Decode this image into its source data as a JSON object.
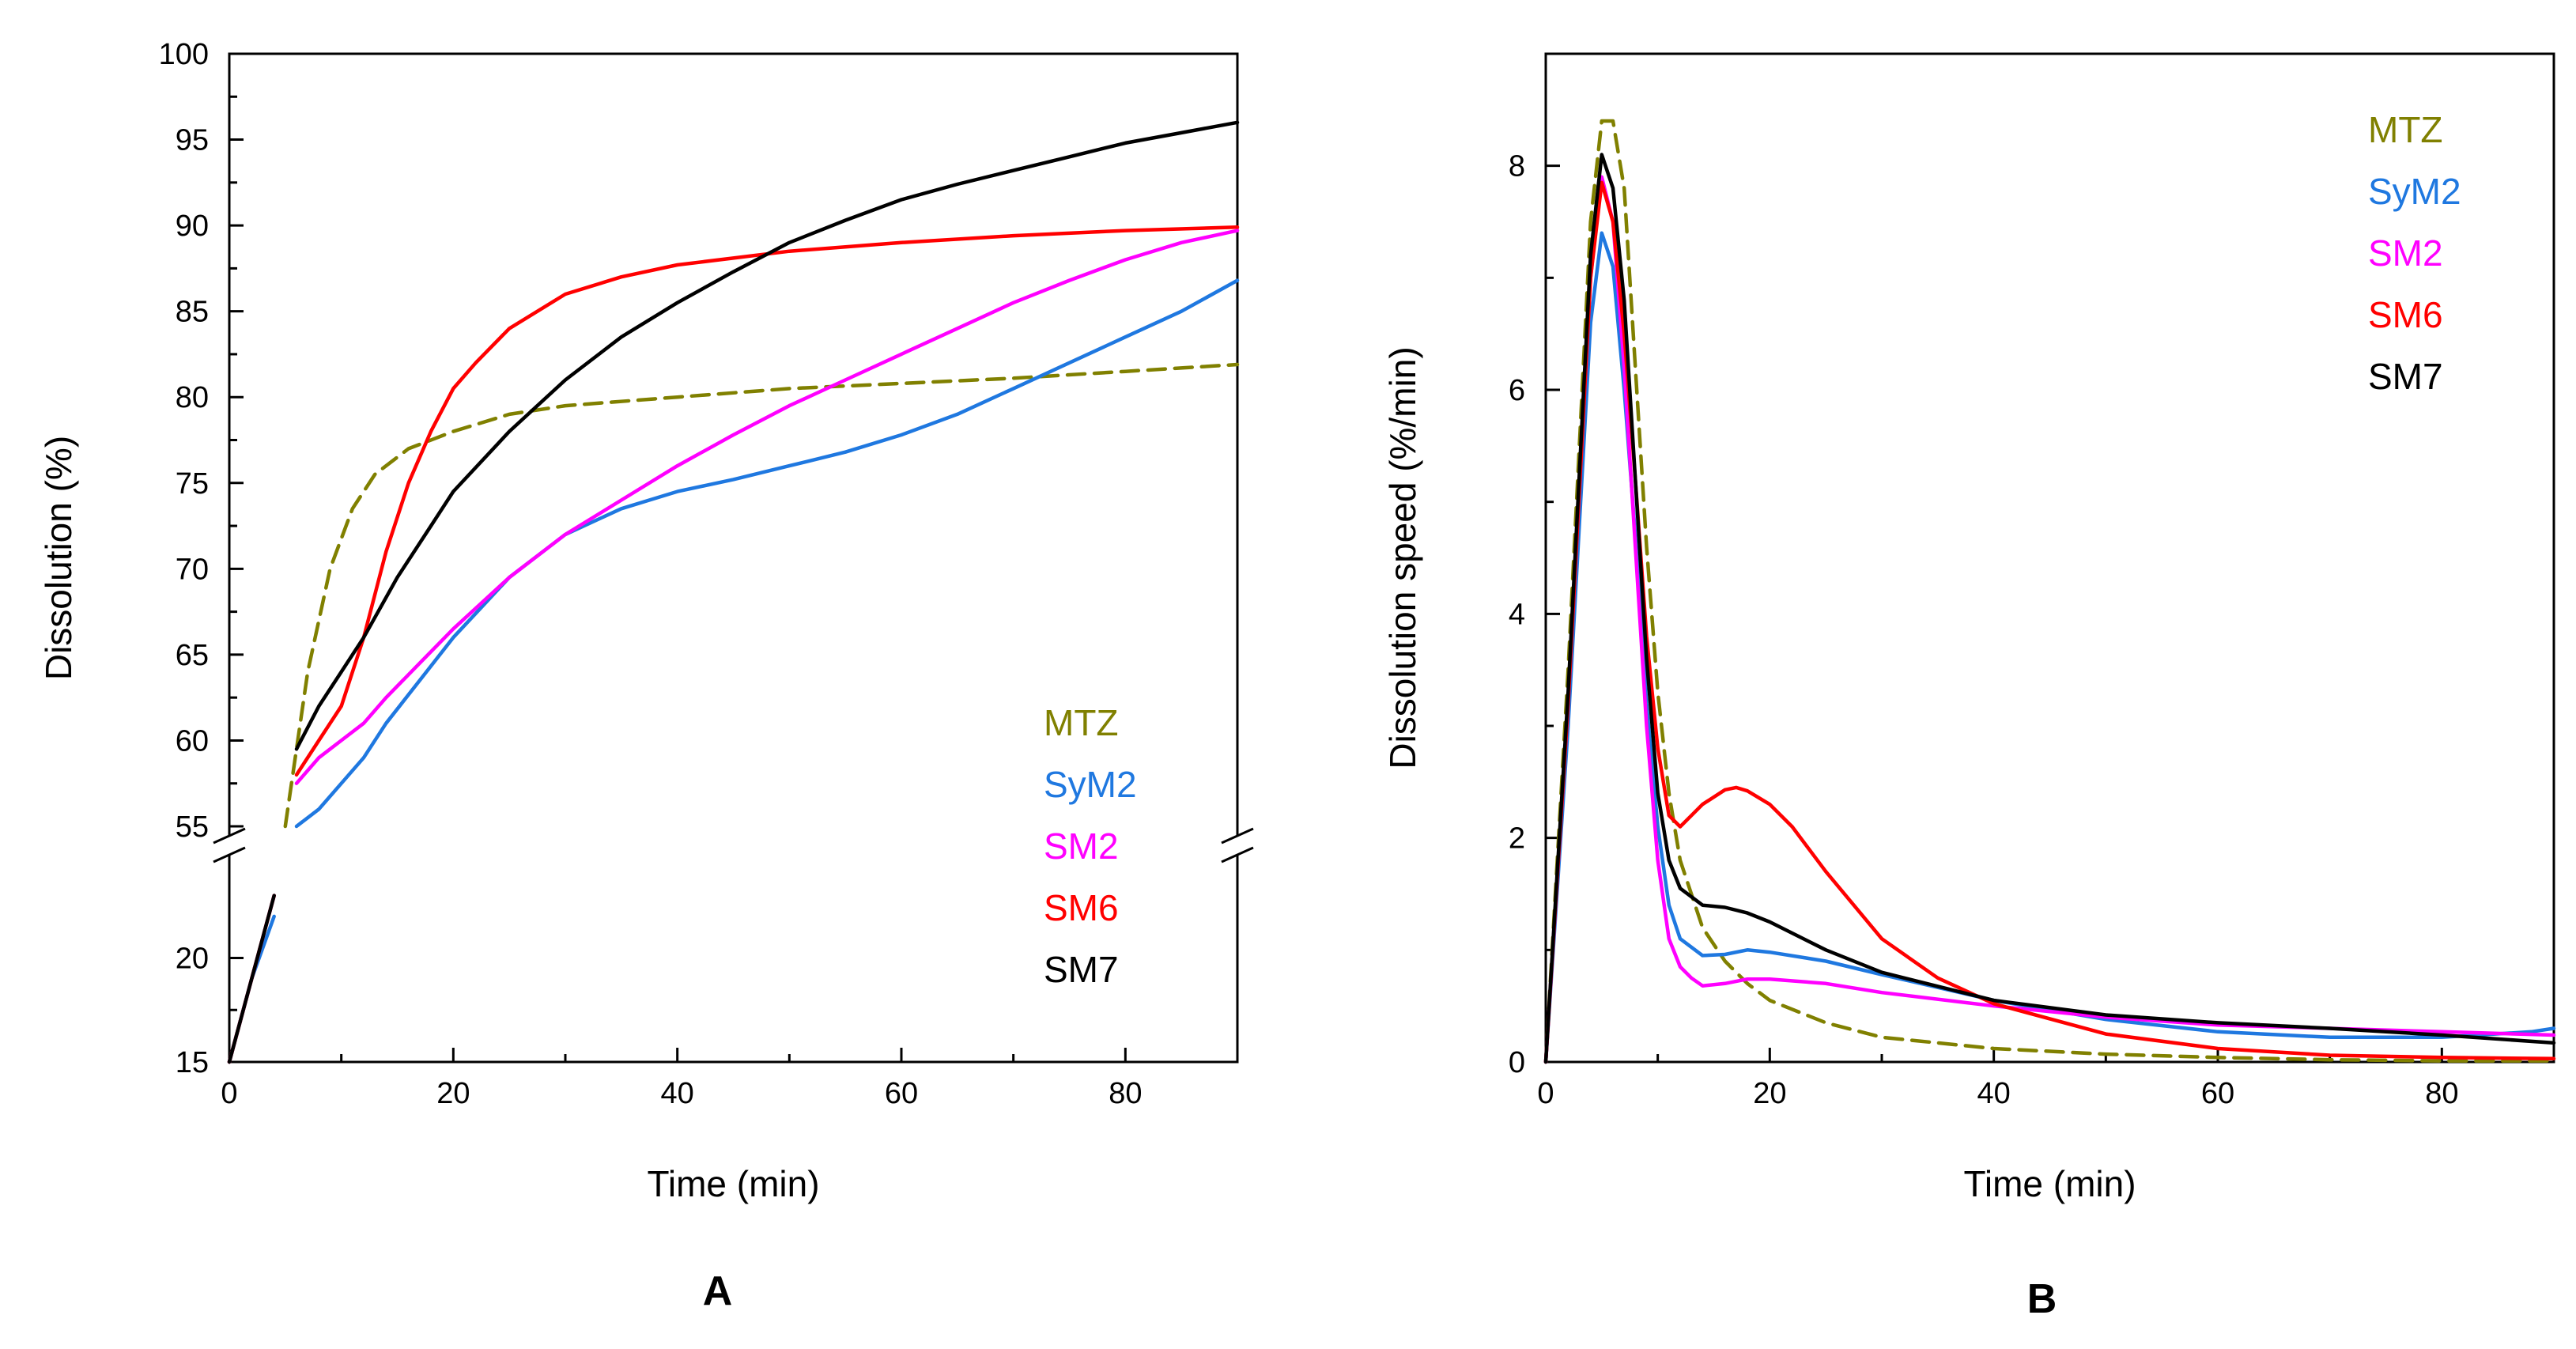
{
  "chart_data": [
    {
      "type": "line",
      "panel_label": "A",
      "xlabel": "Time (min)",
      "ylabel": "Dissolution (%)",
      "xlim": [
        0,
        90
      ],
      "xticks": [
        "0",
        "20",
        "40",
        "60",
        "80"
      ],
      "y_axis_break": {
        "lower_range": [
          15,
          25
        ],
        "upper_range": [
          55,
          100
        ]
      },
      "yticks_lower": [
        "15",
        "20"
      ],
      "yticks_upper": [
        "55",
        "60",
        "65",
        "70",
        "75",
        "80",
        "85",
        "90",
        "95",
        "100"
      ],
      "legend_position": "bottom-right",
      "series": [
        {
          "name": "MTZ",
          "color": "#808000",
          "dashed": true,
          "x": [
            0,
            2,
            3.5,
            5,
            7,
            9,
            11,
            13,
            16,
            20,
            25,
            30,
            40,
            50,
            60,
            70,
            80,
            90
          ],
          "y": [
            15,
            19,
            22,
            55,
            64,
            70,
            73.5,
            75.5,
            77,
            78,
            79,
            79.5,
            80,
            80.5,
            80.8,
            81.1,
            81.5,
            81.9
          ]
        },
        {
          "name": "SyM2",
          "color": "#1f78e0",
          "dashed": false,
          "x": [
            0,
            2,
            4,
            6,
            8,
            10,
            12,
            14,
            17,
            20,
            25,
            30,
            35,
            40,
            45,
            50,
            55,
            60,
            65,
            70,
            75,
            80,
            85,
            90
          ],
          "y": [
            15,
            19,
            22,
            55,
            56,
            57.5,
            59,
            61,
            63.5,
            66,
            69.5,
            72,
            73.5,
            74.5,
            75.2,
            76,
            76.8,
            77.8,
            79,
            80.5,
            82,
            83.5,
            85,
            86.8
          ]
        },
        {
          "name": "SM2",
          "color": "#ff00ff",
          "dashed": false,
          "x": [
            0,
            2,
            4,
            6,
            8,
            10,
            12,
            14,
            17,
            20,
            25,
            30,
            35,
            40,
            45,
            50,
            55,
            60,
            65,
            70,
            75,
            80,
            85,
            90
          ],
          "y": [
            15,
            19,
            23,
            57.5,
            59,
            60,
            61,
            62.5,
            64.5,
            66.5,
            69.5,
            72,
            74,
            76,
            77.8,
            79.5,
            81,
            82.5,
            84,
            85.5,
            86.8,
            88,
            89,
            89.7
          ]
        },
        {
          "name": "SM6",
          "color": "#ff0000",
          "dashed": false,
          "x": [
            0,
            2,
            4,
            6,
            8,
            10,
            12,
            14,
            16,
            18,
            20,
            22,
            25,
            30,
            35,
            40,
            45,
            50,
            60,
            70,
            80,
            90
          ],
          "y": [
            15,
            19,
            23,
            58,
            60,
            62,
            66,
            71,
            75,
            78,
            80.5,
            82,
            84,
            86,
            87,
            87.7,
            88.1,
            88.5,
            89,
            89.4,
            89.7,
            89.9
          ]
        },
        {
          "name": "SM7",
          "color": "#000000",
          "dashed": false,
          "x": [
            0,
            2,
            4,
            6,
            8,
            10,
            12,
            15,
            18,
            20,
            25,
            30,
            35,
            40,
            45,
            50,
            55,
            60,
            65,
            70,
            75,
            80,
            85,
            90
          ],
          "y": [
            15,
            19,
            23,
            59.5,
            62,
            64,
            66,
            69.5,
            72.5,
            74.5,
            78,
            81,
            83.5,
            85.5,
            87.3,
            89,
            90.3,
            91.5,
            92.4,
            93.2,
            94,
            94.8,
            95.4,
            96
          ]
        }
      ]
    },
    {
      "type": "line",
      "panel_label": "B",
      "xlabel": "Time (min)",
      "ylabel": "Dissolution speed (%/min)",
      "xlim": [
        0,
        90
      ],
      "ylim": [
        0,
        9
      ],
      "xticks": [
        "0",
        "20",
        "40",
        "60",
        "80"
      ],
      "yticks": [
        "0",
        "2",
        "4",
        "6",
        "8"
      ],
      "legend_position": "top-right",
      "series": [
        {
          "name": "MTZ",
          "color": "#808000",
          "dashed": true,
          "x": [
            0,
            2,
            4,
            5,
            6,
            7,
            8,
            9,
            10,
            11,
            12,
            14,
            16,
            18,
            20,
            25,
            30,
            40,
            50,
            60,
            70,
            80,
            90
          ],
          "y": [
            0,
            3.5,
            7.5,
            8.4,
            8.4,
            7.8,
            6.2,
            4.6,
            3.3,
            2.4,
            1.8,
            1.2,
            0.9,
            0.7,
            0.55,
            0.35,
            0.22,
            0.12,
            0.07,
            0.04,
            0.02,
            0.01,
            0.01
          ]
        },
        {
          "name": "SyM2",
          "color": "#1f78e0",
          "dashed": false,
          "x": [
            0,
            2,
            4,
            5,
            6,
            7,
            8,
            9,
            10,
            11,
            12,
            14,
            16,
            18,
            20,
            25,
            30,
            40,
            50,
            60,
            70,
            80,
            88,
            90
          ],
          "y": [
            0,
            3,
            6.6,
            7.4,
            7.1,
            6,
            4.7,
            3.2,
            2.1,
            1.4,
            1.1,
            0.95,
            0.96,
            1.0,
            0.98,
            0.9,
            0.78,
            0.55,
            0.38,
            0.27,
            0.22,
            0.22,
            0.27,
            0.3
          ]
        },
        {
          "name": "SM2",
          "color": "#ff00ff",
          "dashed": false,
          "x": [
            0,
            2,
            4,
            5,
            6,
            7,
            8,
            9,
            10,
            11,
            12,
            13,
            14,
            16,
            18,
            20,
            25,
            30,
            40,
            50,
            60,
            70,
            80,
            90
          ],
          "y": [
            0,
            3.2,
            7,
            7.9,
            7.5,
            6.2,
            4.6,
            3,
            1.8,
            1.1,
            0.85,
            0.75,
            0.68,
            0.7,
            0.74,
            0.74,
            0.7,
            0.62,
            0.5,
            0.4,
            0.33,
            0.3,
            0.27,
            0.24
          ]
        },
        {
          "name": "SM6",
          "color": "#ff0000",
          "dashed": false,
          "x": [
            0,
            2,
            4,
            5,
            6,
            7,
            8,
            9,
            10,
            11,
            12,
            13,
            14,
            16,
            17,
            18,
            20,
            22,
            25,
            30,
            35,
            40,
            50,
            60,
            70,
            80,
            90
          ],
          "y": [
            0,
            3.2,
            7,
            7.85,
            7.5,
            6.5,
            5.2,
            3.8,
            2.8,
            2.2,
            2.1,
            2.2,
            2.3,
            2.43,
            2.45,
            2.42,
            2.3,
            2.1,
            1.7,
            1.1,
            0.75,
            0.52,
            0.25,
            0.12,
            0.06,
            0.04,
            0.03
          ]
        },
        {
          "name": "SM7",
          "color": "#000000",
          "dashed": false,
          "x": [
            0,
            2,
            4,
            5,
            6,
            7,
            8,
            9,
            10,
            11,
            12,
            14,
            16,
            18,
            20,
            25,
            30,
            40,
            50,
            60,
            70,
            80,
            90
          ],
          "y": [
            0,
            3.3,
            7.2,
            8.1,
            7.8,
            6.8,
            5.2,
            3.6,
            2.4,
            1.8,
            1.55,
            1.4,
            1.38,
            1.33,
            1.25,
            1.0,
            0.8,
            0.55,
            0.42,
            0.35,
            0.3,
            0.24,
            0.17
          ]
        }
      ]
    }
  ]
}
